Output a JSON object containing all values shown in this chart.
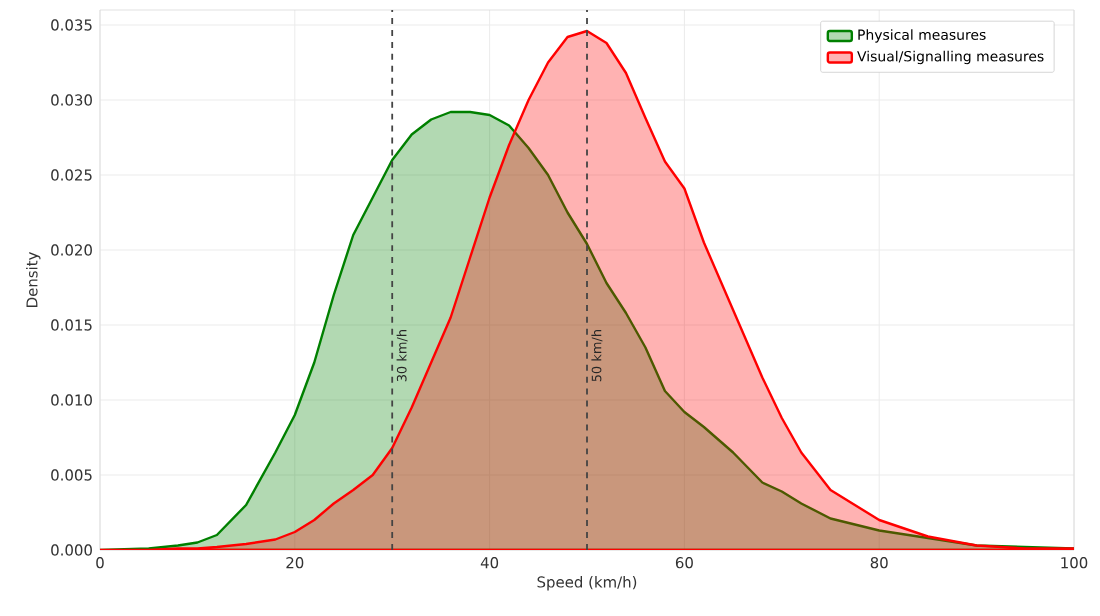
{
  "chart_data": {
    "type": "area",
    "xlabel": "Speed (km/h)",
    "ylabel": "Density",
    "xlim": [
      0,
      100
    ],
    "xticks": [
      0,
      20,
      40,
      60,
      80,
      100
    ],
    "ylim": [
      0,
      0.036
    ],
    "yticks": [
      {
        "value": 0,
        "label": "0.000"
      },
      {
        "value": 0.005,
        "label": "0.005"
      },
      {
        "value": 0.01,
        "label": "0.010"
      },
      {
        "value": 0.015,
        "label": "0.015"
      },
      {
        "value": 0.02,
        "label": "0.020"
      },
      {
        "value": 0.025,
        "label": "0.025"
      },
      {
        "value": 0.03,
        "label": "0.030"
      },
      {
        "value": 0.035,
        "label": "0.035"
      }
    ],
    "grid": true,
    "legend": "top right",
    "ref_lines": [
      {
        "axis": "x",
        "value": 30,
        "label": "30 km/h",
        "color": "#444444",
        "line_style": "dashed"
      },
      {
        "axis": "x",
        "value": 50,
        "label": "50 km/h",
        "color": "#444444",
        "line_style": "dashed"
      }
    ],
    "x": [
      0,
      5,
      8,
      10,
      12,
      15,
      18,
      20,
      22,
      24,
      26,
      28,
      30,
      32,
      34,
      36,
      38,
      40,
      42,
      44,
      46,
      48,
      50,
      52,
      54,
      56,
      58,
      60,
      62,
      65,
      68,
      70,
      72,
      75,
      80,
      85,
      90,
      95,
      100
    ],
    "series": [
      {
        "name": "Physical measures",
        "color": "#008000",
        "values": [
          0,
          0.0001,
          0.0003,
          0.0005,
          0.001,
          0.003,
          0.0065,
          0.009,
          0.0125,
          0.017,
          0.021,
          0.0235,
          0.026,
          0.0277,
          0.0287,
          0.0292,
          0.0292,
          0.029,
          0.0283,
          0.0268,
          0.025,
          0.0225,
          0.0204,
          0.0178,
          0.0158,
          0.0135,
          0.0106,
          0.0092,
          0.0082,
          0.0065,
          0.0045,
          0.0039,
          0.0031,
          0.0021,
          0.0013,
          0.0008,
          0.0003,
          0.0002,
          0.0001
        ]
      },
      {
        "name": "Visual/Signalling measures",
        "color": "#ff0000",
        "values": [
          0,
          0,
          0.0001,
          0.0001,
          0.0002,
          0.0004,
          0.0007,
          0.0012,
          0.002,
          0.0031,
          0.004,
          0.005,
          0.0068,
          0.0095,
          0.0125,
          0.0155,
          0.0195,
          0.0235,
          0.027,
          0.03,
          0.0325,
          0.0342,
          0.0346,
          0.0338,
          0.0318,
          0.0288,
          0.0259,
          0.0241,
          0.0205,
          0.016,
          0.0115,
          0.0088,
          0.0065,
          0.004,
          0.002,
          0.0009,
          0.0003,
          0.0001,
          0.0001
        ]
      }
    ]
  }
}
